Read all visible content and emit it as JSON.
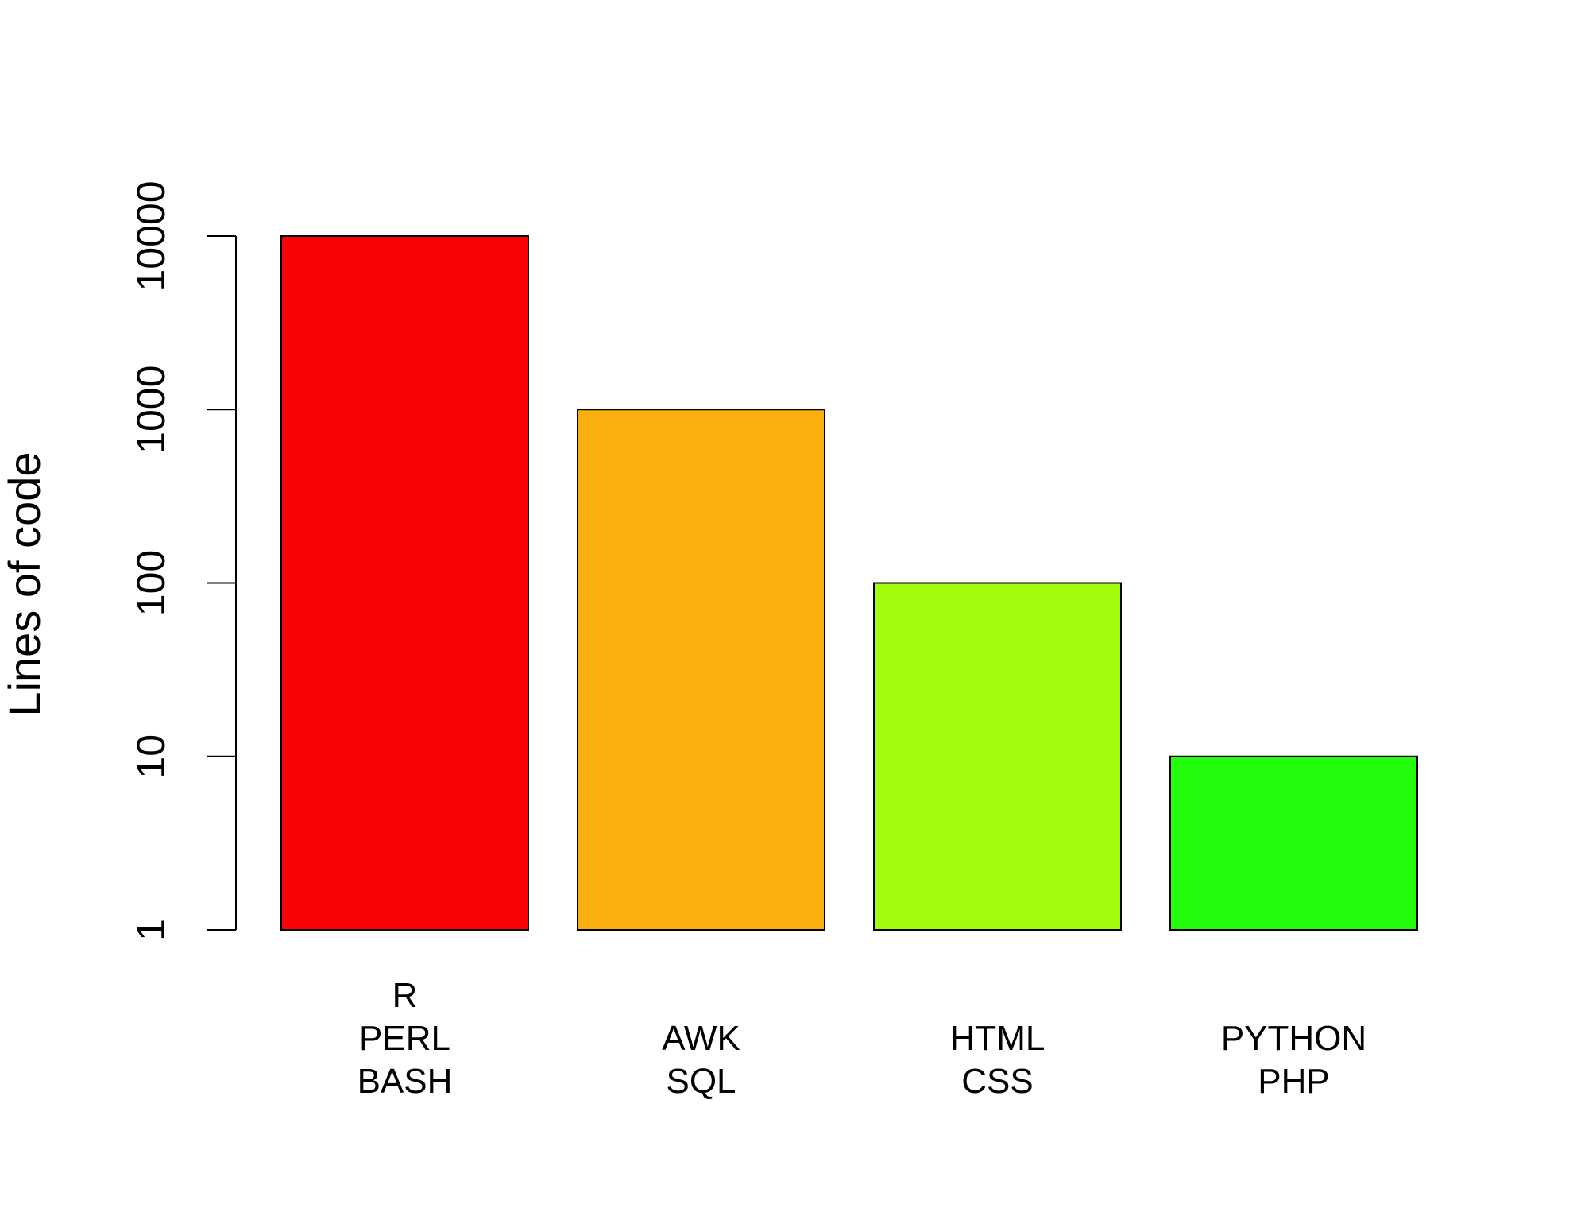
{
  "chart_data": {
    "type": "bar",
    "ylabel": "Lines of code",
    "yscale": "log",
    "ylim": [
      1,
      10000
    ],
    "yticks": [
      "1",
      "10",
      "100",
      "1000",
      "10000"
    ],
    "categories": [
      [
        "R",
        "PERL",
        "BASH"
      ],
      [
        "AWK",
        "SQL"
      ],
      [
        "HTML",
        "CSS"
      ],
      [
        "PYTHON",
        "PHP"
      ]
    ],
    "values": [
      10000,
      1000,
      100,
      10
    ],
    "colors": [
      "#FA0307",
      "#FBAE0D",
      "#A2FC0C",
      "#24FC0D"
    ],
    "grid": false,
    "legend": "none"
  }
}
